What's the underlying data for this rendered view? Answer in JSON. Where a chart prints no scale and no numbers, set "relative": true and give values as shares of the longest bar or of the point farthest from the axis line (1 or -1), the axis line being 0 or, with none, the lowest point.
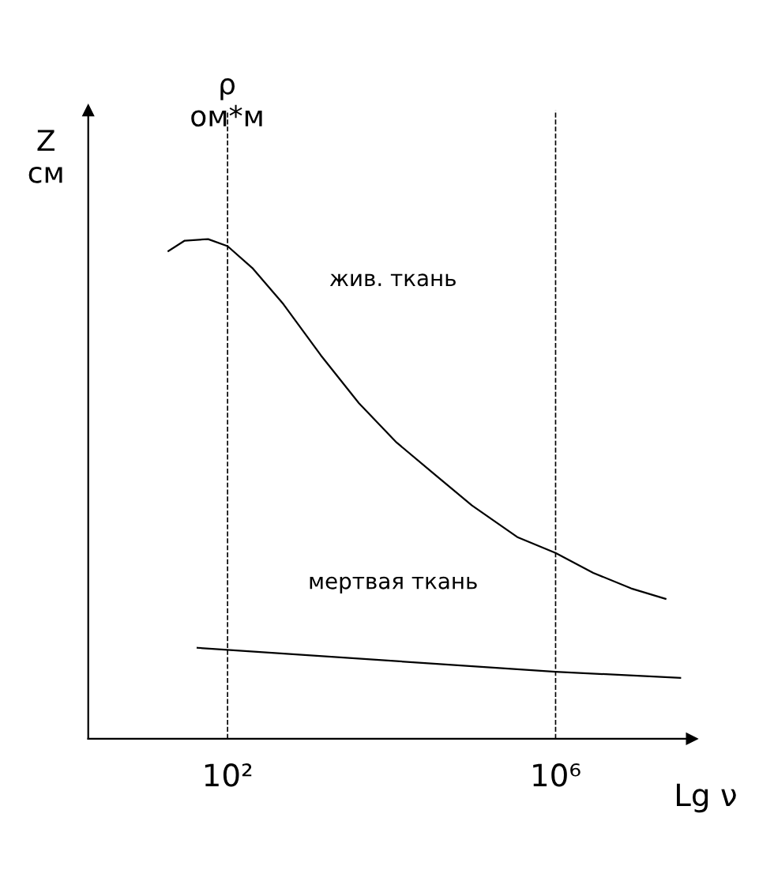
{
  "chart_data": {
    "type": "line",
    "relative": true,
    "xlabel": "Lg ν",
    "ylabel": "Z\nсм",
    "annotations": [
      "ρ\nом*м"
    ],
    "log": "x",
    "xlim": [
      2,
      46000000
    ],
    "xticks": [
      {
        "value": 100,
        "label": "10²"
      },
      {
        "value": 1000000,
        "label": "10⁶"
      }
    ],
    "series": [
      {
        "name": "жив. ткань",
        "color": "#000000",
        "x": [
          19,
          30,
          58,
          100,
          204,
          479,
          1380,
          3980,
          11500,
          33100,
          95500,
          347000,
          1000000,
          2880000,
          8320000,
          21900000
        ],
        "values": [
          0.976,
          0.997,
          1.0,
          0.986,
          0.941,
          0.87,
          0.767,
          0.672,
          0.593,
          0.53,
          0.467,
          0.403,
          0.372,
          0.332,
          0.301,
          0.28
        ]
      },
      {
        "name": "мертвая ткань",
        "color": "#000000",
        "x": [
          43,
          1000000,
          33100000
        ],
        "values": [
          0.182,
          0.134,
          0.122
        ]
      }
    ],
    "ref_lines": [
      {
        "axis": "x",
        "value": 100,
        "line_style": "dashed"
      },
      {
        "axis": "x",
        "value": 1000000,
        "line_style": "dashed"
      }
    ],
    "legend": false,
    "grid": false,
    "marker": "none",
    "line_style": "solid"
  }
}
